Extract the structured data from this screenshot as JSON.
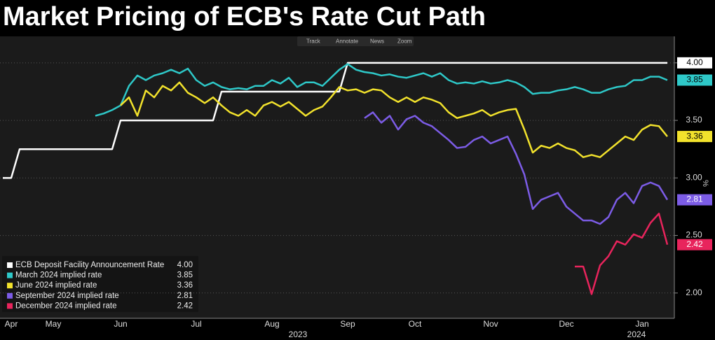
{
  "toolbar": [
    "Track",
    "Annotate",
    "News",
    "Zoom"
  ],
  "chart_data": {
    "type": "line",
    "title": "Market Pricing of ECB's Rate Cut Path",
    "y_label": "%",
    "categories": [
      null,
      "Apr",
      null,
      null,
      null,
      null,
      "May",
      null,
      null,
      null,
      null,
      null,
      null,
      null,
      "Jun",
      null,
      null,
      null,
      null,
      null,
      null,
      null,
      null,
      "Jul",
      null,
      null,
      null,
      null,
      null,
      null,
      null,
      null,
      "Aug",
      null,
      null,
      null,
      null,
      null,
      null,
      null,
      null,
      "Sep",
      null,
      null,
      null,
      null,
      null,
      null,
      null,
      "Oct",
      null,
      null,
      null,
      null,
      null,
      null,
      null,
      null,
      "Nov",
      null,
      null,
      null,
      null,
      null,
      null,
      null,
      null,
      "Dec",
      null,
      null,
      null,
      null,
      null,
      null,
      null,
      null,
      "Jan",
      null,
      null,
      null
    ],
    "x_group_labels": [
      "2023",
      "2024"
    ],
    "ylim": [
      1.78,
      4.23
    ],
    "yticks": [
      {
        "value": 2,
        "label": "2.00"
      },
      {
        "value": 2.5,
        "label": "2.50"
      },
      {
        "value": 3,
        "label": "3.00"
      },
      {
        "value": 3.5,
        "label": "3.50"
      },
      {
        "value": 4,
        "label": "4.00"
      }
    ],
    "grid": true,
    "legend": "lower left",
    "series": [
      {
        "name": "ECB Deposit Facility Announcement Rate",
        "color": "#ffffff",
        "last_value_label": "4.00",
        "values": [
          3.0,
          3.0,
          3.25,
          3.25,
          3.25,
          3.25,
          3.25,
          3.25,
          3.25,
          3.25,
          3.25,
          3.25,
          3.25,
          3.25,
          3.5,
          3.5,
          3.5,
          3.5,
          3.5,
          3.5,
          3.5,
          3.5,
          3.5,
          3.5,
          3.5,
          3.5,
          3.75,
          3.75,
          3.75,
          3.75,
          3.75,
          3.75,
          3.75,
          3.75,
          3.75,
          3.75,
          3.75,
          3.75,
          3.75,
          3.75,
          3.75,
          4.0,
          4.0,
          4.0,
          4.0,
          4.0,
          4.0,
          4.0,
          4.0,
          4.0,
          4.0,
          4.0,
          4.0,
          4.0,
          4.0,
          4.0,
          4.0,
          4.0,
          4.0,
          4.0,
          4.0,
          4.0,
          4.0,
          4.0,
          4.0,
          4.0,
          4.0,
          4.0,
          4.0,
          4.0,
          4.0,
          4.0,
          4.0,
          4.0,
          4.0,
          4.0,
          4.0,
          4.0,
          4.0,
          4.0
        ]
      },
      {
        "name": "March 2024 implied rate",
        "color": "#2ec8c8",
        "last_value_label": "3.85",
        "values": [
          null,
          null,
          null,
          null,
          null,
          null,
          null,
          null,
          null,
          null,
          null,
          3.54,
          3.56,
          3.59,
          3.63,
          3.8,
          3.89,
          3.85,
          3.89,
          3.91,
          3.94,
          3.91,
          3.95,
          3.85,
          3.8,
          3.83,
          3.79,
          3.77,
          3.78,
          3.77,
          3.8,
          3.8,
          3.85,
          3.82,
          3.87,
          3.79,
          3.83,
          3.83,
          3.8,
          3.87,
          3.94,
          3.99,
          3.94,
          3.92,
          3.91,
          3.89,
          3.9,
          3.88,
          3.87,
          3.89,
          3.91,
          3.88,
          3.91,
          3.85,
          3.82,
          3.83,
          3.82,
          3.84,
          3.82,
          3.83,
          3.85,
          3.83,
          3.79,
          3.73,
          3.74,
          3.74,
          3.76,
          3.77,
          3.79,
          3.77,
          3.74,
          3.74,
          3.77,
          3.79,
          3.8,
          3.85,
          3.85,
          3.88,
          3.88,
          3.85
        ]
      },
      {
        "name": "June 2024 implied rate",
        "color": "#f2e22c",
        "last_value_label": "3.36",
        "values": [
          null,
          null,
          null,
          null,
          null,
          null,
          null,
          null,
          null,
          null,
          null,
          null,
          null,
          null,
          3.63,
          3.7,
          3.54,
          3.76,
          3.7,
          3.8,
          3.76,
          3.83,
          3.74,
          3.7,
          3.65,
          3.7,
          3.63,
          3.57,
          3.54,
          3.59,
          3.54,
          3.63,
          3.66,
          3.62,
          3.66,
          3.6,
          3.54,
          3.59,
          3.62,
          3.7,
          3.79,
          3.76,
          3.77,
          3.74,
          3.77,
          3.76,
          3.7,
          3.66,
          3.7,
          3.66,
          3.7,
          3.68,
          3.65,
          3.57,
          3.52,
          3.54,
          3.56,
          3.59,
          3.54,
          3.57,
          3.59,
          3.6,
          3.42,
          3.22,
          3.28,
          3.26,
          3.3,
          3.26,
          3.24,
          3.18,
          3.2,
          3.18,
          3.24,
          3.3,
          3.36,
          3.33,
          3.42,
          3.46,
          3.45,
          3.36
        ]
      },
      {
        "name": "September 2024 implied rate",
        "color": "#7c5ce6",
        "last_value_label": "2.81",
        "values": [
          null,
          null,
          null,
          null,
          null,
          null,
          null,
          null,
          null,
          null,
          null,
          null,
          null,
          null,
          null,
          null,
          null,
          null,
          null,
          null,
          null,
          null,
          null,
          null,
          null,
          null,
          null,
          null,
          null,
          null,
          null,
          null,
          null,
          null,
          null,
          null,
          null,
          null,
          null,
          null,
          null,
          null,
          null,
          3.52,
          3.57,
          3.48,
          3.54,
          3.42,
          3.51,
          3.54,
          3.48,
          3.45,
          3.39,
          3.33,
          3.26,
          3.27,
          3.33,
          3.36,
          3.3,
          3.33,
          3.36,
          3.21,
          3.03,
          2.73,
          2.81,
          2.84,
          2.87,
          2.75,
          2.69,
          2.63,
          2.63,
          2.6,
          2.66,
          2.81,
          2.87,
          2.78,
          2.93,
          2.96,
          2.93,
          2.81
        ]
      },
      {
        "name": "December 2024 implied rate",
        "color": "#e8245c",
        "last_value_label": "2.42",
        "values": [
          null,
          null,
          null,
          null,
          null,
          null,
          null,
          null,
          null,
          null,
          null,
          null,
          null,
          null,
          null,
          null,
          null,
          null,
          null,
          null,
          null,
          null,
          null,
          null,
          null,
          null,
          null,
          null,
          null,
          null,
          null,
          null,
          null,
          null,
          null,
          null,
          null,
          null,
          null,
          null,
          null,
          null,
          null,
          null,
          null,
          null,
          null,
          null,
          null,
          null,
          null,
          null,
          null,
          null,
          null,
          null,
          null,
          null,
          null,
          null,
          null,
          null,
          null,
          null,
          null,
          null,
          null,
          null,
          2.23,
          2.23,
          1.99,
          2.24,
          2.32,
          2.45,
          2.42,
          2.51,
          2.48,
          2.61,
          2.69,
          2.42
        ]
      }
    ]
  }
}
